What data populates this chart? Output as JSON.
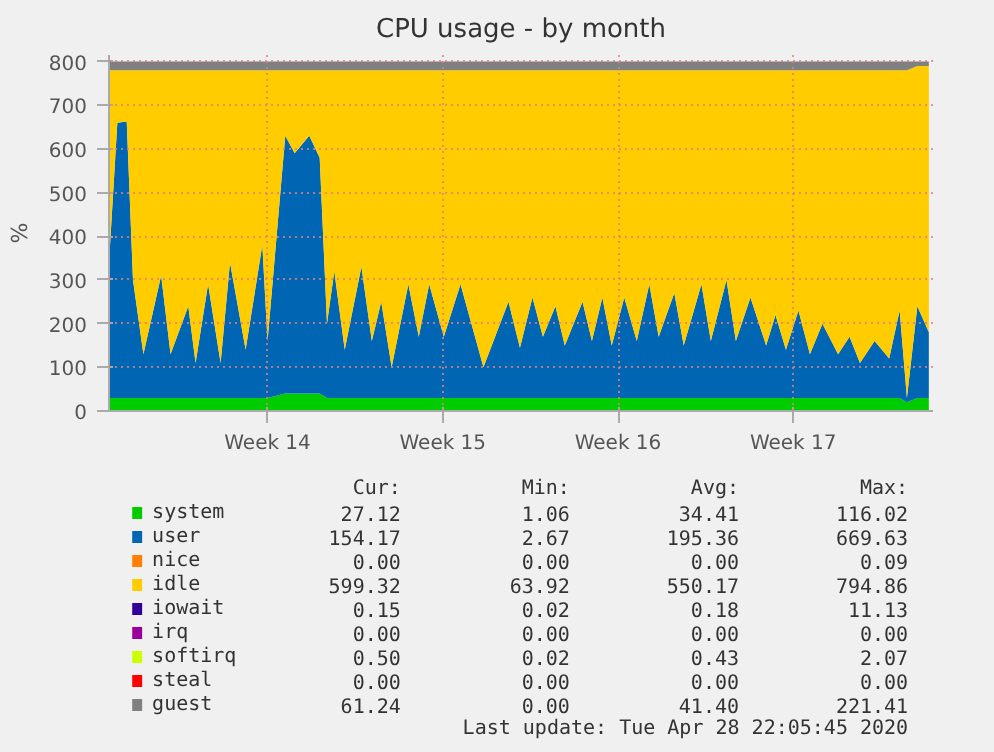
{
  "chart_data": {
    "type": "area",
    "stacked": true,
    "title": "CPU usage - by month",
    "ylabel": "%",
    "x": [
      "2020-03-27T00:00",
      "2020-03-27T08:00",
      "2020-03-27T17:00",
      "2020-03-27T23:00",
      "2020-03-28T09:00",
      "2020-03-29T02:00",
      "2020-03-29T11:00",
      "2020-03-30T04:00",
      "2020-03-30T11:00",
      "2020-03-30T23:00",
      "2020-03-31T11:00",
      "2020-03-31T20:00",
      "2020-04-01T11:00",
      "2020-04-02T03:00",
      "2020-04-02T08:00",
      "2020-04-03T01:00",
      "2020-04-03T10:00",
      "2020-04-04T00:00",
      "2020-04-04T10:00",
      "2020-04-04T17:00",
      "2020-04-05T00:00",
      "2020-04-05T10:00",
      "2020-04-06T02:00",
      "2020-04-06T12:00",
      "2020-04-06T21:00",
      "2020-04-07T07:00",
      "2020-04-07T23:00",
      "2020-04-08T09:00",
      "2020-04-08T19:00",
      "2020-04-09T09:00",
      "2020-04-10T01:00",
      "2020-04-10T23:00",
      "2020-04-11T23:00",
      "2020-04-12T10:00",
      "2020-04-12T22:00",
      "2020-04-13T08:00",
      "2020-04-13T20:00",
      "2020-04-14T05:00",
      "2020-04-14T22:00",
      "2020-04-15T07:00",
      "2020-04-15T17:00",
      "2020-04-16T02:00",
      "2020-04-16T14:00",
      "2020-04-17T02:00",
      "2020-04-17T14:00",
      "2020-04-17T23:00",
      "2020-04-18T14:00",
      "2020-04-18T23:00",
      "2020-04-19T16:00",
      "2020-04-20T01:00",
      "2020-04-20T16:00",
      "2020-04-21T01:00",
      "2020-04-21T15:00",
      "2020-04-22T06:00",
      "2020-04-22T15:00",
      "2020-04-23T01:00",
      "2020-04-23T13:00",
      "2020-04-24T00:00",
      "2020-04-24T12:00",
      "2020-04-25T03:00",
      "2020-04-25T14:00",
      "2020-04-26T00:00",
      "2020-04-26T14:00",
      "2020-04-27T04:00",
      "2020-04-27T14:00",
      "2020-04-27T21:00",
      "2020-04-28T07:00",
      "2020-04-28T18:00"
    ],
    "xlim": [
      "2020-03-27T00:00",
      "2020-04-28T22:00"
    ],
    "xticks": [
      {
        "value": "2020-04-02T08:00",
        "label": "Week 14"
      },
      {
        "value": "2020-04-09T08:00",
        "label": "Week 15"
      },
      {
        "value": "2020-04-16T08:00",
        "label": "Week 16"
      },
      {
        "value": "2020-04-23T08:00",
        "label": "Week 17"
      }
    ],
    "ylim": [
      0,
      815
    ],
    "yticks": [
      0,
      100,
      200,
      300,
      400,
      500,
      600,
      700,
      800
    ],
    "grid": true,
    "legend": "bottom",
    "series": [
      {
        "name": "system",
        "color": "#00cc00",
        "values": [
          30,
          30,
          30,
          30,
          30,
          30,
          30,
          30,
          30,
          30,
          30,
          30,
          30,
          30,
          30,
          40,
          40,
          40,
          40,
          30,
          30,
          30,
          30,
          30,
          30,
          30,
          30,
          30,
          30,
          30,
          30,
          30,
          30,
          30,
          30,
          30,
          30,
          30,
          30,
          30,
          30,
          30,
          30,
          30,
          30,
          30,
          30,
          30,
          30,
          30,
          30,
          30,
          30,
          30,
          30,
          30,
          30,
          30,
          30,
          30,
          30,
          30,
          30,
          30,
          30,
          20,
          30,
          30
        ]
      },
      {
        "name": "user",
        "color": "#0066b3",
        "values": [
          310,
          630,
          633,
          270,
          100,
          280,
          100,
          210,
          80,
          260,
          80,
          310,
          110,
          350,
          130,
          590,
          550,
          590,
          540,
          170,
          290,
          110,
          300,
          130,
          220,
          70,
          260,
          140,
          260,
          140,
          260,
          70,
          220,
          115,
          230,
          140,
          210,
          120,
          220,
          130,
          230,
          120,
          230,
          130,
          260,
          140,
          240,
          120,
          260,
          130,
          270,
          130,
          230,
          120,
          190,
          110,
          200,
          100,
          170,
          100,
          140,
          80,
          130,
          90,
          200,
          10,
          210,
          150
        ]
      },
      {
        "name": "nice",
        "color": "#ff8000",
        "values": [
          null,
          null,
          null,
          null,
          null,
          null,
          null,
          null,
          null,
          null,
          null,
          null,
          null,
          null,
          null,
          null,
          null,
          null,
          null,
          null,
          null,
          null,
          null,
          null,
          null,
          null,
          null,
          null,
          null,
          null,
          null,
          null,
          null,
          null,
          null,
          null,
          null,
          null,
          null,
          null,
          null,
          null,
          null,
          null,
          null,
          null,
          null,
          null,
          null,
          null,
          null,
          null,
          null,
          null,
          null,
          null,
          null,
          null,
          null,
          null,
          null,
          null,
          null,
          null,
          null,
          null,
          null,
          null
        ]
      },
      {
        "name": "idle",
        "color": "#ffcc00",
        "values": [
          440,
          120,
          117,
          480,
          650,
          470,
          650,
          540,
          670,
          490,
          670,
          440,
          640,
          400,
          620,
          150,
          190,
          150,
          200,
          580,
          460,
          640,
          450,
          620,
          530,
          680,
          490,
          610,
          490,
          610,
          490,
          680,
          530,
          635,
          520,
          610,
          540,
          630,
          530,
          620,
          520,
          630,
          520,
          620,
          490,
          610,
          510,
          630,
          490,
          620,
          480,
          620,
          520,
          630,
          560,
          640,
          550,
          650,
          580,
          650,
          610,
          670,
          620,
          660,
          550,
          750,
          550,
          610
        ]
      },
      {
        "name": "iowait",
        "color": "#330099",
        "values": [
          null,
          null,
          null,
          null,
          null,
          null,
          null,
          null,
          null,
          null,
          null,
          null,
          null,
          null,
          null,
          null,
          null,
          null,
          null,
          null,
          null,
          null,
          null,
          null,
          null,
          null,
          null,
          null,
          null,
          null,
          null,
          null,
          null,
          null,
          null,
          null,
          null,
          null,
          null,
          null,
          null,
          null,
          null,
          null,
          null,
          null,
          null,
          null,
          null,
          null,
          null,
          null,
          null,
          null,
          null,
          null,
          null,
          null,
          null,
          null,
          null,
          null,
          null,
          null,
          null,
          null,
          null,
          null
        ]
      },
      {
        "name": "irq",
        "color": "#990099",
        "values": [
          null,
          null,
          null,
          null,
          null,
          null,
          null,
          null,
          null,
          null,
          null,
          null,
          null,
          null,
          null,
          null,
          null,
          null,
          null,
          null,
          null,
          null,
          null,
          null,
          null,
          null,
          null,
          null,
          null,
          null,
          null,
          null,
          null,
          null,
          null,
          null,
          null,
          null,
          null,
          null,
          null,
          null,
          null,
          null,
          null,
          null,
          null,
          null,
          null,
          null,
          null,
          null,
          null,
          null,
          null,
          null,
          null,
          null,
          null,
          null,
          null,
          null,
          null,
          null,
          null,
          null,
          null,
          null
        ]
      },
      {
        "name": "softirq",
        "color": "#ccff00",
        "values": [
          null,
          null,
          null,
          null,
          null,
          null,
          null,
          null,
          null,
          null,
          null,
          null,
          null,
          null,
          null,
          null,
          null,
          null,
          null,
          null,
          null,
          null,
          null,
          null,
          null,
          null,
          null,
          null,
          null,
          null,
          null,
          null,
          null,
          null,
          null,
          null,
          null,
          null,
          null,
          null,
          null,
          null,
          null,
          null,
          null,
          null,
          null,
          null,
          null,
          null,
          null,
          null,
          null,
          null,
          null,
          null,
          null,
          null,
          null,
          null,
          null,
          null,
          null,
          null,
          null,
          null,
          null,
          null
        ]
      },
      {
        "name": "steal",
        "color": "#ff0000",
        "values": [
          null,
          null,
          null,
          null,
          null,
          null,
          null,
          null,
          null,
          null,
          null,
          null,
          null,
          null,
          null,
          null,
          null,
          null,
          null,
          null,
          null,
          null,
          null,
          null,
          null,
          null,
          null,
          null,
          null,
          null,
          null,
          null,
          null,
          null,
          null,
          null,
          null,
          null,
          null,
          null,
          null,
          null,
          null,
          null,
          null,
          null,
          null,
          null,
          null,
          null,
          null,
          null,
          null,
          null,
          null,
          null,
          null,
          null,
          null,
          null,
          null,
          null,
          null,
          null,
          null,
          null,
          null,
          null
        ]
      },
      {
        "name": "guest",
        "color": "#808080",
        "values": [
          20,
          20,
          20,
          20,
          20,
          20,
          20,
          20,
          20,
          20,
          20,
          20,
          20,
          20,
          20,
          20,
          20,
          20,
          20,
          20,
          20,
          20,
          20,
          20,
          20,
          20,
          20,
          20,
          20,
          20,
          20,
          20,
          20,
          20,
          20,
          20,
          20,
          20,
          20,
          20,
          20,
          20,
          20,
          20,
          20,
          20,
          20,
          20,
          20,
          20,
          20,
          20,
          20,
          20,
          20,
          20,
          20,
          20,
          20,
          20,
          20,
          20,
          20,
          20,
          20,
          20,
          10,
          10
        ]
      }
    ],
    "annotations": [
      "Cur:",
      "Min:",
      "Avg:",
      "Max:",
      "27.12",
      "1.06",
      "34.41",
      "116.02",
      "154.17",
      "2.67",
      "195.36",
      "669.63",
      "0.00",
      "0.00",
      "0.00",
      "0.09",
      "599.32",
      "63.92",
      "550.17",
      "794.86",
      "0.15",
      "0.02",
      "0.18",
      "11.13",
      "0.00",
      "0.00",
      "0.00",
      "0.00",
      "0.50",
      "0.02",
      "0.43",
      "2.07",
      "0.00",
      "0.00",
      "0.00",
      "0.00",
      "61.24",
      "0.00",
      "41.40",
      "221.41",
      "Last update: Tue Apr 28 22:05:45 2020"
    ]
  }
}
